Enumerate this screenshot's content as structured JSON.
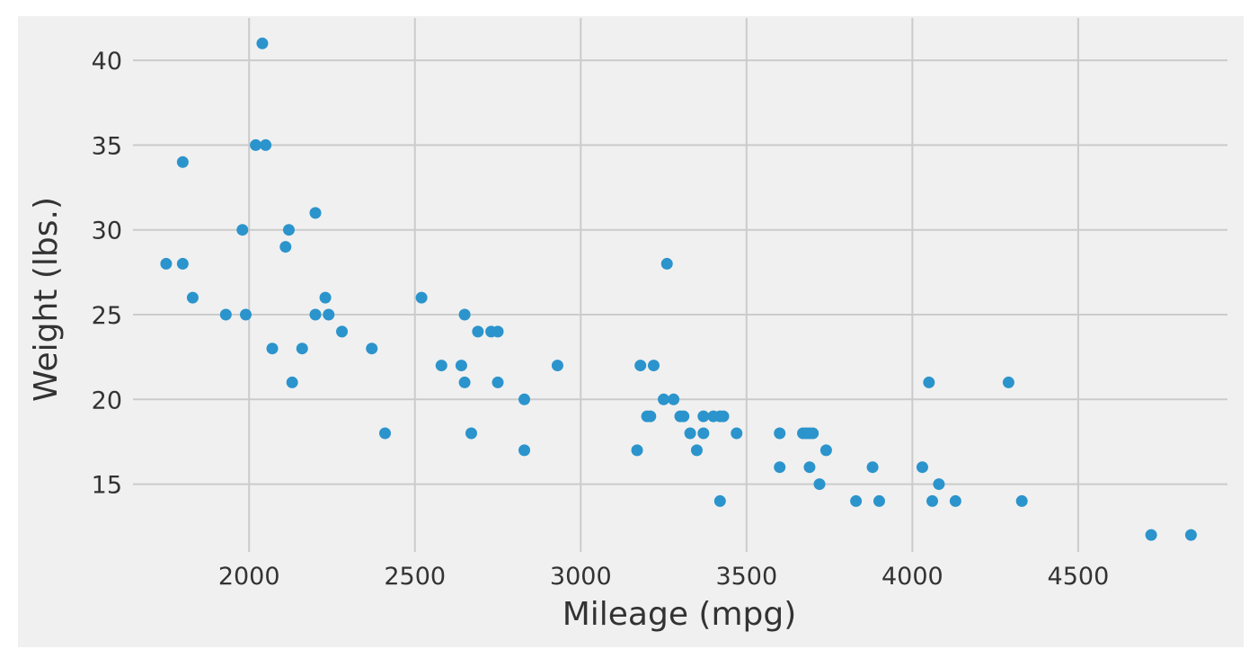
{
  "chart_data": {
    "type": "scatter",
    "title": "",
    "xlabel": "Mileage (mpg)",
    "ylabel": "Weight (lbs.)",
    "xlim": [
      1650,
      4950
    ],
    "ylim": [
      11,
      42.5
    ],
    "x_ticks": [
      2000,
      2500,
      3000,
      3500,
      4000,
      4500
    ],
    "y_ticks": [
      15,
      20,
      25,
      30,
      35,
      40
    ],
    "grid": true,
    "color": "#2b94cc",
    "points": [
      [
        2040,
        41
      ],
      [
        2020,
        35
      ],
      [
        2050,
        35
      ],
      [
        1800,
        34
      ],
      [
        2200,
        31
      ],
      [
        1980,
        30
      ],
      [
        2120,
        30
      ],
      [
        2110,
        29
      ],
      [
        1750,
        28
      ],
      [
        1800,
        28
      ],
      [
        3260,
        28
      ],
      [
        1830,
        26
      ],
      [
        2230,
        26
      ],
      [
        2520,
        26
      ],
      [
        1930,
        25
      ],
      [
        1990,
        25
      ],
      [
        2200,
        25
      ],
      [
        2240,
        25
      ],
      [
        2650,
        25
      ],
      [
        2280,
        24
      ],
      [
        2690,
        24
      ],
      [
        2730,
        24
      ],
      [
        2750,
        24
      ],
      [
        2070,
        23
      ],
      [
        2160,
        23
      ],
      [
        2370,
        23
      ],
      [
        2580,
        22
      ],
      [
        2640,
        22
      ],
      [
        2930,
        22
      ],
      [
        3180,
        22
      ],
      [
        3220,
        22
      ],
      [
        2130,
        21
      ],
      [
        2650,
        21
      ],
      [
        2750,
        21
      ],
      [
        4050,
        21
      ],
      [
        4290,
        21
      ],
      [
        2830,
        20
      ],
      [
        3250,
        20
      ],
      [
        3280,
        20
      ],
      [
        3200,
        19
      ],
      [
        3210,
        19
      ],
      [
        3300,
        19
      ],
      [
        3310,
        19
      ],
      [
        3370,
        19
      ],
      [
        3400,
        19
      ],
      [
        3420,
        19
      ],
      [
        3430,
        19
      ],
      [
        2410,
        18
      ],
      [
        2670,
        18
      ],
      [
        3330,
        18
      ],
      [
        3370,
        18
      ],
      [
        3470,
        18
      ],
      [
        3600,
        18
      ],
      [
        3670,
        18
      ],
      [
        3680,
        18
      ],
      [
        3690,
        18
      ],
      [
        3700,
        18
      ],
      [
        2830,
        17
      ],
      [
        3170,
        17
      ],
      [
        3350,
        17
      ],
      [
        3740,
        17
      ],
      [
        3600,
        16
      ],
      [
        3690,
        16
      ],
      [
        3880,
        16
      ],
      [
        4030,
        16
      ],
      [
        3720,
        15
      ],
      [
        4080,
        15
      ],
      [
        3420,
        14
      ],
      [
        3830,
        14
      ],
      [
        3900,
        14
      ],
      [
        4060,
        14
      ],
      [
        4130,
        14
      ],
      [
        4330,
        14
      ],
      [
        4720,
        12
      ],
      [
        4840,
        12
      ]
    ]
  }
}
